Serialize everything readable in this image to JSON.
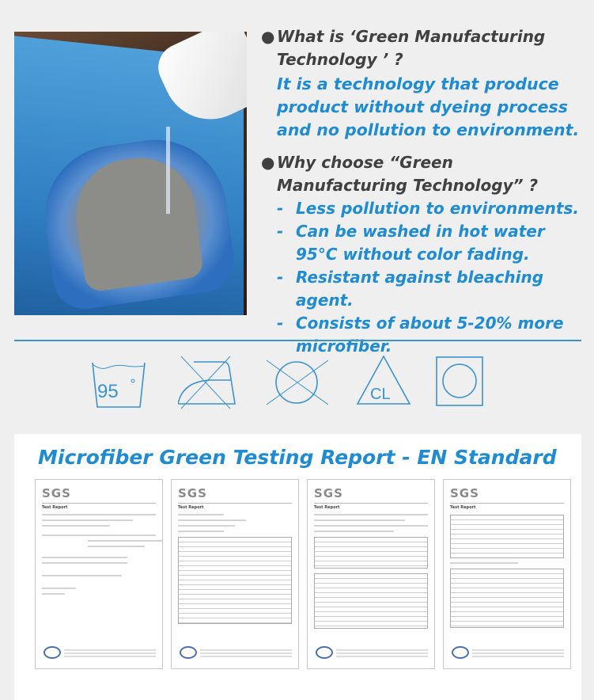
{
  "info": {
    "q1": "What is ‘Green Manufacturing Technology ’ ?",
    "a1": "It is a technology that produce product without dyeing process and no pollution to environment.",
    "q2": "Why choose “Green Manufacturing Technology” ?",
    "benefits": [
      "Less pollution to environments.",
      "Can be washed in hot water 95°C without color fading.",
      "Resistant against bleaching agent.",
      "Consists of about 5-20% more microfiber."
    ]
  },
  "care_icons": [
    {
      "icon": "wash-95-icon",
      "label": "95"
    },
    {
      "icon": "do-not-iron-icon"
    },
    {
      "icon": "do-not-dry-clean-icon"
    },
    {
      "icon": "chlorine-bleach-icon",
      "label": "CL"
    },
    {
      "icon": "tumble-dry-icon"
    }
  ],
  "report": {
    "title": "Microfiber Green Testing Report - EN Standard",
    "docs": [
      {
        "logo": "SGS",
        "heading": "Test Report"
      },
      {
        "logo": "SGS",
        "heading": "Test Report"
      },
      {
        "logo": "SGS",
        "heading": "Test Report"
      },
      {
        "logo": "SGS",
        "heading": "Test Report"
      }
    ]
  },
  "colors": {
    "accent": "#1e8bd2",
    "question": "#404040",
    "icon": "#3b92d0"
  }
}
